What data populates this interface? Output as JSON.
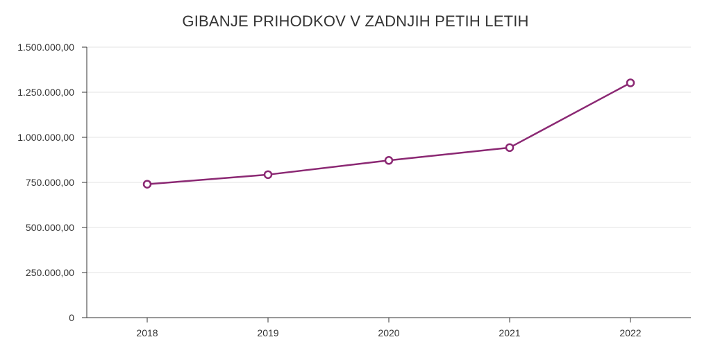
{
  "chart_data": {
    "type": "line",
    "title": "GIBANJE PRIHODKOV V ZADNJIH PETIH LETIH",
    "xlabel": "",
    "ylabel": "",
    "categories": [
      "2018",
      "2019",
      "2020",
      "2021",
      "2022"
    ],
    "series": [
      {
        "values": [
          740000,
          793000,
          872000,
          943000,
          1302000
        ],
        "color": "#8b2873"
      }
    ],
    "ylim": [
      0,
      1500000
    ],
    "yticks": [
      0,
      250000,
      500000,
      750000,
      1000000,
      1250000,
      1500000
    ],
    "ytick_labels": [
      "0",
      "250.000,00",
      "500.000,00",
      "750.000,00",
      "1.000.000,00",
      "1.250.000,00",
      "1.500.000,00"
    ],
    "grid": true,
    "legend": "none"
  }
}
